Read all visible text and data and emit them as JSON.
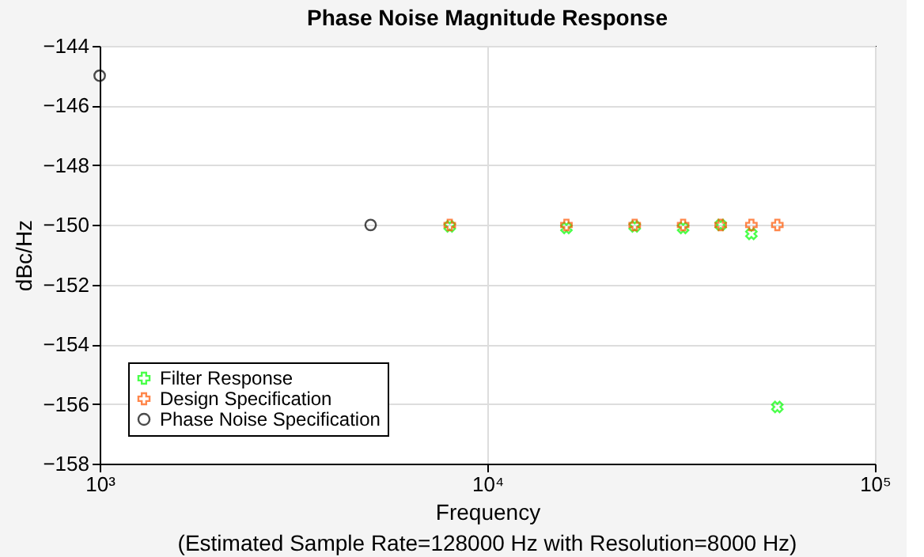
{
  "chart_data": {
    "type": "scatter",
    "title": "Phase Noise Magnitude Response",
    "xlabel": "Frequency",
    "ylabel": "dBc/Hz",
    "annotations": [
      "(Estimated Sample Rate=128000 Hz with Resolution=8000 Hz)"
    ],
    "log": "x",
    "xlim": [
      1000,
      100000
    ],
    "xticks": [
      {
        "value": 1000,
        "label": "10³"
      },
      {
        "value": 10000,
        "label": "10⁴"
      },
      {
        "value": 100000,
        "label": "10⁵"
      }
    ],
    "ylim": [
      -158,
      -144
    ],
    "yticks": [
      -158,
      -156,
      -154,
      -152,
      -150,
      -148,
      -146,
      -144
    ],
    "grid": true,
    "legend": "bottom left",
    "series": [
      {
        "name": "Filter Response",
        "color": "#00ff00",
        "marker": "cross",
        "x": [
          8000,
          16000,
          24000,
          32000,
          40000,
          48000,
          56000
        ],
        "values": [
          -150.05,
          -150.1,
          -150.05,
          -150.1,
          -150.0,
          -150.3,
          -156.1
        ]
      },
      {
        "name": "Design Specification",
        "color": "#ff5500",
        "x": [
          8000,
          16000,
          24000,
          32000,
          40000,
          48000,
          56000
        ],
        "values": [
          -150,
          -150,
          -150,
          -150,
          -150,
          -150,
          -150
        ]
      },
      {
        "name": "Phase Noise Specification",
        "color": "#000000",
        "marker": "circle",
        "x": [
          1000,
          5000
        ],
        "values": [
          -145,
          -150
        ]
      }
    ]
  }
}
